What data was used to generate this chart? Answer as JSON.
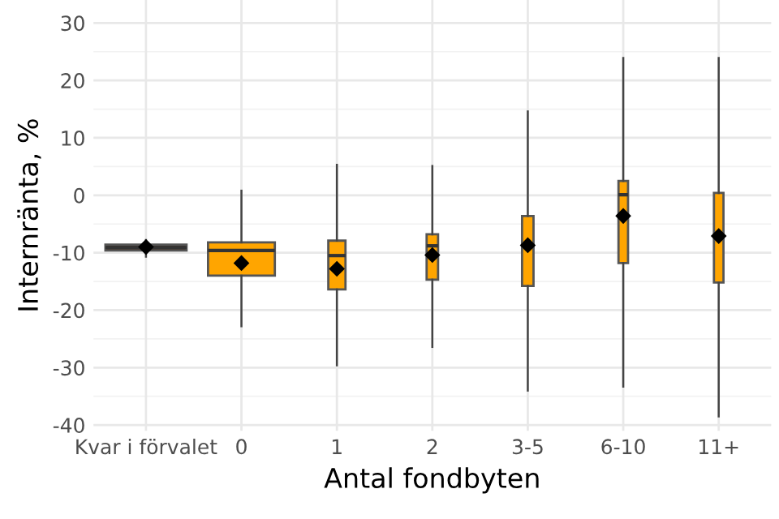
{
  "chart_data": {
    "type": "box",
    "xlabel": "Antal fondbyten",
    "ylabel": "Internränta, %",
    "categories": [
      "Kvar i förvalet",
      "0",
      "1",
      "2",
      "3-5",
      "6-10",
      "11+"
    ],
    "colors": [
      "#4d3322",
      "#ffa500",
      "#ffa500",
      "#ffa500",
      "#ffa500",
      "#ffa500",
      "#ffa500"
    ],
    "boxes": [
      {
        "low": -10.7,
        "q1": -9.6,
        "median": -9.1,
        "q3": -8.6,
        "high": -7.8,
        "mean": -9.0
      },
      {
        "low": -22.8,
        "q1": -14.0,
        "median": -9.6,
        "q3": -8.2,
        "high": 0.8,
        "mean": -11.8
      },
      {
        "low": -29.6,
        "q1": -16.4,
        "median": -10.5,
        "q3": -7.9,
        "high": 5.3,
        "mean": -12.8
      },
      {
        "low": -26.4,
        "q1": -14.7,
        "median": -8.8,
        "q3": -6.8,
        "high": 5.1,
        "mean": -10.4
      },
      {
        "low": -34.0,
        "q1": -15.8,
        "median": -8.7,
        "q3": -3.6,
        "high": 14.6,
        "mean": -8.7
      },
      {
        "low": -33.3,
        "q1": -11.8,
        "median": 0.1,
        "q3": 2.5,
        "high": 23.9,
        "mean": -3.6
      },
      {
        "low": -38.5,
        "q1": -15.2,
        "median": -7.1,
        "q3": 0.4,
        "high": 23.9,
        "mean": -7.1
      }
    ],
    "ylim": [
      -41,
      34
    ],
    "yticks": [
      -40,
      -30,
      -20,
      -10,
      0,
      10,
      20,
      30
    ],
    "grid": true,
    "marker": "diamond"
  }
}
